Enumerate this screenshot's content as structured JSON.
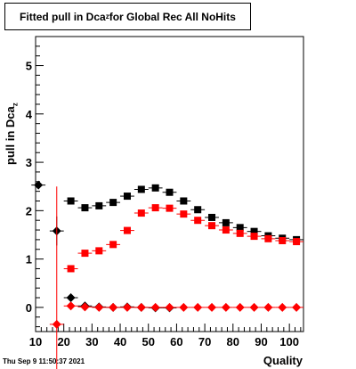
{
  "title": {
    "prefix": "Fitted pull in Dca",
    "sub": "z",
    "suffix": " for Global Rec All NoHits"
  },
  "footer": "Thu Sep  9 11:50:37 2021",
  "chart_data": {
    "type": "scatter",
    "xlabel": "Quality",
    "ylabel_prefix": "pull in Dca",
    "ylabel_sub": "z",
    "xlim": [
      10,
      105
    ],
    "ylim": [
      -0.5,
      5.6
    ],
    "xticks": [
      10,
      20,
      30,
      40,
      50,
      60,
      70,
      80,
      90,
      100
    ],
    "yticks": [
      0,
      1,
      2,
      3,
      4,
      5
    ],
    "grid": false,
    "colors": {
      "black": "#000000",
      "red": "#ff0000"
    },
    "series": [
      {
        "marker": "square",
        "color": "#000000",
        "x": [
          22.5,
          27.5,
          32.5,
          37.5,
          42.5,
          47.5,
          52.5,
          57.5,
          62.5,
          67.5,
          72.5,
          77.5,
          82.5,
          87.5,
          92.5,
          97.5,
          102.5
        ],
        "y": [
          2.2,
          2.06,
          2.1,
          2.17,
          2.3,
          2.44,
          2.47,
          2.38,
          2.2,
          2.02,
          1.86,
          1.75,
          1.65,
          1.57,
          1.48,
          1.43,
          1.4
        ]
      },
      {
        "marker": "square",
        "color": "#ff0000",
        "x": [
          22.5,
          27.5,
          32.5,
          37.5,
          42.5,
          47.5,
          52.5,
          57.5,
          62.5,
          67.5,
          72.5,
          77.5,
          82.5,
          87.5,
          92.5,
          97.5,
          102.5
        ],
        "y": [
          0.8,
          1.12,
          1.17,
          1.3,
          1.59,
          1.95,
          2.06,
          2.05,
          1.93,
          1.8,
          1.69,
          1.6,
          1.53,
          1.47,
          1.42,
          1.38,
          1.36
        ]
      },
      {
        "marker": "diamond",
        "color": "#000000",
        "x": [
          11,
          17.5,
          22.5,
          27.5,
          32.5,
          37.5,
          42.5,
          47.5,
          52.5,
          57.5
        ],
        "y": [
          2.53,
          1.58,
          0.2,
          0.03,
          0.01,
          0.0,
          0.01,
          0.0,
          -0.01,
          -0.01
        ],
        "err": [
          0,
          0.3,
          0.04,
          0.02,
          0.01,
          0.01,
          0.01,
          0.01,
          0.01,
          0.01
        ]
      },
      {
        "marker": "diamond",
        "color": "#ff0000",
        "x": [
          17.5,
          22.5,
          27.5,
          32.5,
          37.5,
          42.5,
          47.5,
          52.5,
          57.5,
          62.5,
          67.5,
          72.5,
          77.5,
          82.5,
          87.5,
          92.5,
          97.5,
          102.5
        ],
        "y": [
          -0.35,
          0.03,
          0.01,
          0.0,
          0.0,
          0.0,
          0.0,
          0.0,
          0.0,
          0.0,
          0.0,
          0.0,
          0.0,
          0.0,
          0.0,
          0.0,
          0.0,
          0.0
        ],
        "err": [
          2.85,
          0.02,
          0.01,
          0,
          0,
          0,
          0,
          0,
          0,
          0,
          0,
          0,
          0,
          0,
          0,
          0,
          0,
          0
        ]
      }
    ]
  }
}
